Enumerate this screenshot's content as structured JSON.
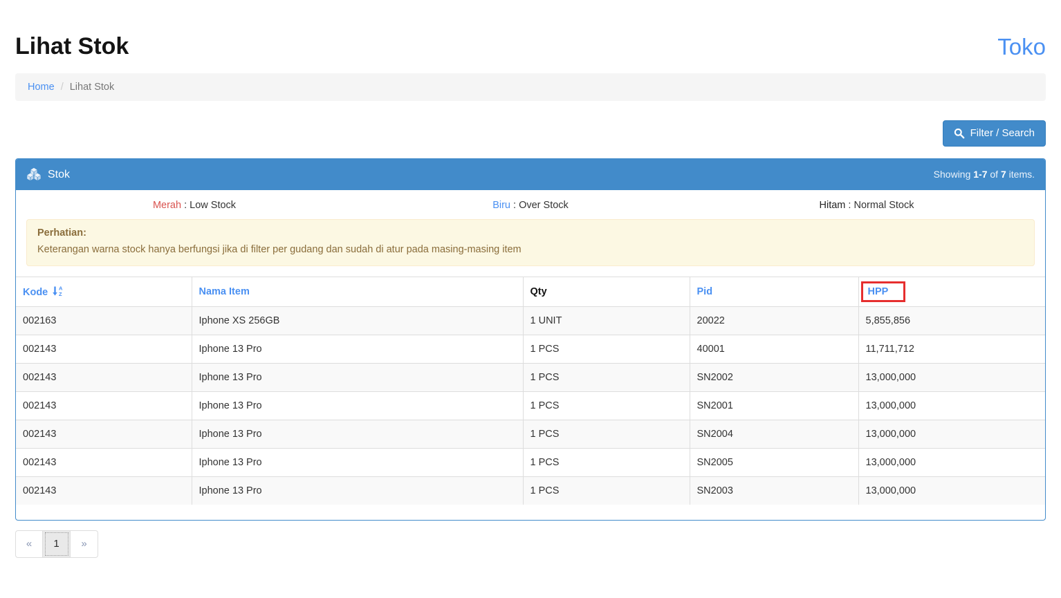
{
  "colors": {
    "accent_blue": "#428bca",
    "link_blue": "#4a90f2",
    "legend_red": "#d9534f",
    "warning_bg": "#fcf8e3",
    "warning_text": "#8a6d3b",
    "annotation_red": "#e62e2e"
  },
  "header": {
    "title": "Lihat Stok",
    "brand": "Toko"
  },
  "breadcrumb": {
    "home": "Home",
    "separator": "/",
    "current": "Lihat Stok"
  },
  "toolbar": {
    "filter_button_label": "Filter / Search",
    "filter_button_icon": "search-icon"
  },
  "panel": {
    "title": "Stok",
    "title_icon": "cubes-icon",
    "summary": {
      "showing": "Showing",
      "range": "1-7",
      "of": "of",
      "total": "7",
      "items": "items."
    },
    "legend": [
      {
        "term": "Merah",
        "sep": " : ",
        "desc": "Low Stock"
      },
      {
        "term": "Biru",
        "sep": " : ",
        "desc": "Over Stock"
      },
      {
        "term": "Hitam",
        "sep": " : ",
        "desc": "Normal Stock"
      }
    ],
    "warning": {
      "title": "Perhatian:",
      "body": "Keterangan warna stock hanya berfungsi jika di filter per gudang dan sudah di atur pada masing-masing item"
    }
  },
  "table": {
    "columns": [
      {
        "label": "Kode",
        "sort_icon": "sort-alpha-asc"
      },
      {
        "label": "Nama Item"
      },
      {
        "label": "Qty"
      },
      {
        "label": "Pid"
      },
      {
        "label": "HPP",
        "annotated": true
      }
    ],
    "rows": [
      [
        "002163",
        "Iphone XS 256GB",
        "1 UNIT",
        "20022",
        "5,855,856"
      ],
      [
        "002143",
        "Iphone 13 Pro",
        "1 PCS",
        "40001",
        "11,711,712"
      ],
      [
        "002143",
        "Iphone 13 Pro",
        "1 PCS",
        "SN2002",
        "13,000,000"
      ],
      [
        "002143",
        "Iphone 13 Pro",
        "1 PCS",
        "SN2001",
        "13,000,000"
      ],
      [
        "002143",
        "Iphone 13 Pro",
        "1 PCS",
        "SN2004",
        "13,000,000"
      ],
      [
        "002143",
        "Iphone 13 Pro",
        "1 PCS",
        "SN2005",
        "13,000,000"
      ],
      [
        "002143",
        "Iphone 13 Pro",
        "1 PCS",
        "SN2003",
        "13,000,000"
      ]
    ]
  },
  "pagination": {
    "prev": "«",
    "current": "1",
    "next": "»"
  }
}
